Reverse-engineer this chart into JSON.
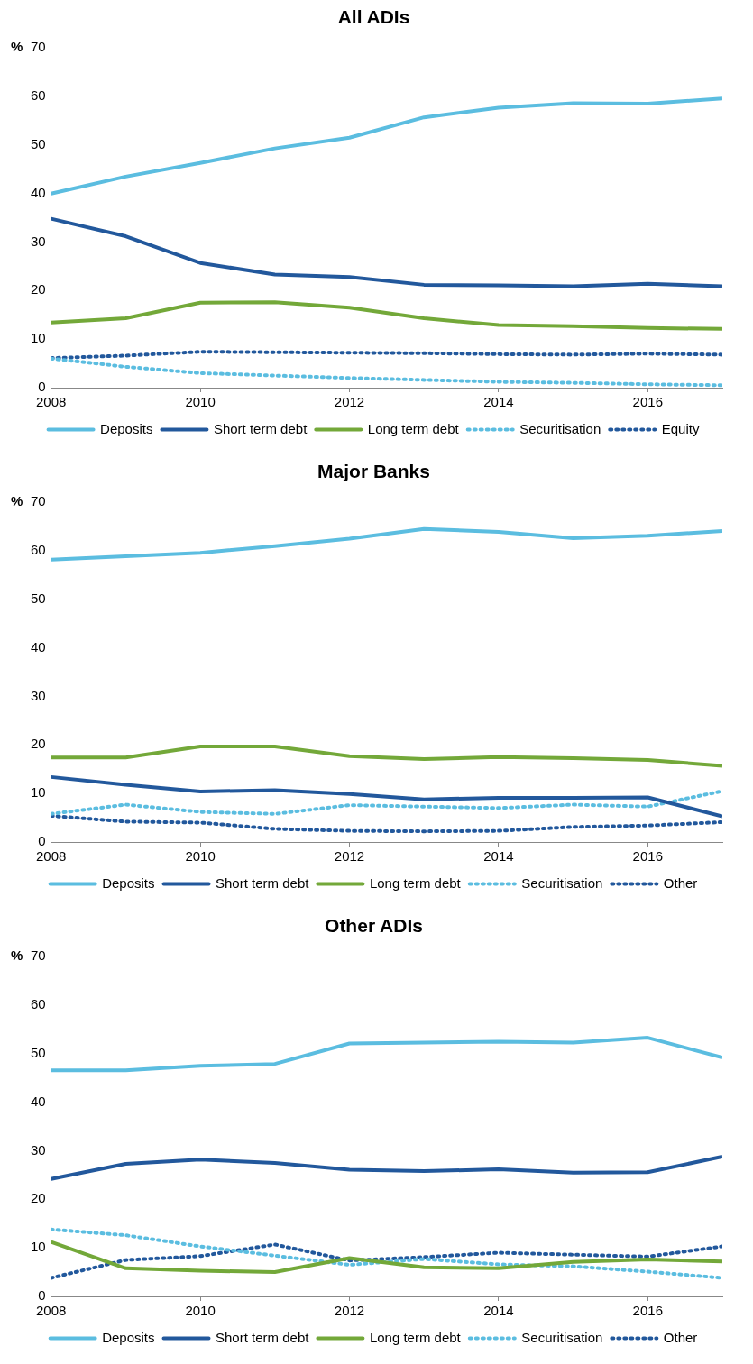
{
  "chart_data": [
    {
      "type": "line",
      "title": "All ADIs",
      "ylabel": "%",
      "x": [
        2008,
        2009,
        2010,
        2011,
        2012,
        2013,
        2014,
        2015,
        2016,
        2017
      ],
      "xlim": [
        2008,
        2017
      ],
      "xticks": [
        2008,
        2010,
        2012,
        2014,
        2016
      ],
      "ylim": [
        0,
        70
      ],
      "yticks": [
        0,
        10,
        20,
        30,
        40,
        50,
        60,
        70
      ],
      "grid": false,
      "legend": "bottom",
      "marker": "none",
      "series": [
        {
          "name": "Deposits",
          "color": "#5bbde0",
          "line_style": "solid",
          "values": [
            40.0,
            43.5,
            46.3,
            49.3,
            51.5,
            55.7,
            57.7,
            58.6,
            58.5,
            59.6
          ]
        },
        {
          "name": "Short term debt",
          "color": "#22589c",
          "line_style": "solid",
          "values": [
            34.8,
            31.2,
            25.7,
            23.3,
            22.8,
            21.2,
            21.1,
            20.9,
            21.4,
            20.9
          ]
        },
        {
          "name": "Long term debt",
          "color": "#73a839",
          "line_style": "solid",
          "values": [
            13.4,
            14.3,
            17.5,
            17.6,
            16.5,
            14.3,
            12.9,
            12.7,
            12.3,
            12.1
          ]
        },
        {
          "name": "Securitisation",
          "color": "#5bbde0",
          "line_style": "dotted",
          "values": [
            6.0,
            4.3,
            3.0,
            2.5,
            2.0,
            1.6,
            1.2,
            1.0,
            0.7,
            0.5
          ]
        },
        {
          "name": "Equity",
          "color": "#22589c",
          "line_style": "dotted",
          "values": [
            6.1,
            6.6,
            7.4,
            7.3,
            7.2,
            7.1,
            6.9,
            6.8,
            7.0,
            6.8
          ]
        }
      ]
    },
    {
      "type": "line",
      "title": "Major Banks",
      "ylabel": "%",
      "x": [
        2008,
        2009,
        2010,
        2011,
        2012,
        2013,
        2014,
        2015,
        2016,
        2017
      ],
      "xlim": [
        2008,
        2017
      ],
      "xticks": [
        2008,
        2010,
        2012,
        2014,
        2016
      ],
      "ylim": [
        0,
        70
      ],
      "yticks": [
        0,
        10,
        20,
        30,
        40,
        50,
        60,
        70
      ],
      "grid": false,
      "legend": "bottom",
      "marker": "none",
      "series": [
        {
          "name": "Deposits",
          "color": "#5bbde0",
          "line_style": "solid",
          "values": [
            58.2,
            58.9,
            59.6,
            61.0,
            62.5,
            64.5,
            63.9,
            62.6,
            63.1,
            64.1
          ]
        },
        {
          "name": "Short term debt",
          "color": "#22589c",
          "line_style": "solid",
          "values": [
            13.4,
            11.8,
            10.4,
            10.7,
            9.9,
            8.8,
            9.1,
            9.1,
            9.2,
            5.3
          ]
        },
        {
          "name": "Long term debt",
          "color": "#73a839",
          "line_style": "solid",
          "values": [
            17.4,
            17.4,
            19.7,
            19.7,
            17.7,
            17.1,
            17.5,
            17.3,
            16.9,
            15.7
          ]
        },
        {
          "name": "Securitisation",
          "color": "#5bbde0",
          "line_style": "dotted",
          "values": [
            5.8,
            7.7,
            6.2,
            5.8,
            7.6,
            7.3,
            7.0,
            7.7,
            7.3,
            10.5
          ]
        },
        {
          "name": "Other",
          "color": "#22589c",
          "line_style": "dotted",
          "values": [
            5.4,
            4.2,
            4.0,
            2.7,
            2.3,
            2.2,
            2.3,
            3.1,
            3.4,
            4.1
          ]
        }
      ]
    },
    {
      "type": "line",
      "title": "Other ADIs",
      "ylabel": "%",
      "x": [
        2008,
        2009,
        2010,
        2011,
        2012,
        2013,
        2014,
        2015,
        2016,
        2017
      ],
      "xlim": [
        2008,
        2017
      ],
      "xticks": [
        2008,
        2010,
        2012,
        2014,
        2016
      ],
      "ylim": [
        0,
        70
      ],
      "yticks": [
        0,
        10,
        20,
        30,
        40,
        50,
        60,
        70
      ],
      "grid": false,
      "legend": "bottom",
      "marker": "none",
      "series": [
        {
          "name": "Deposits",
          "color": "#5bbde0",
          "line_style": "solid",
          "values": [
            46.6,
            46.6,
            47.5,
            47.9,
            52.1,
            52.3,
            52.5,
            52.3,
            53.3,
            49.2
          ]
        },
        {
          "name": "Short term debt",
          "color": "#22589c",
          "line_style": "solid",
          "values": [
            24.2,
            27.3,
            28.2,
            27.5,
            26.1,
            25.8,
            26.2,
            25.5,
            25.6,
            28.8
          ]
        },
        {
          "name": "Long term debt",
          "color": "#73a839",
          "line_style": "solid",
          "values": [
            11.2,
            5.8,
            5.3,
            5.0,
            7.9,
            6.0,
            5.8,
            7.1,
            7.6,
            7.2
          ]
        },
        {
          "name": "Securitisation",
          "color": "#5bbde0",
          "line_style": "dotted",
          "values": [
            13.8,
            12.6,
            10.3,
            8.4,
            6.5,
            7.7,
            6.6,
            6.2,
            5.1,
            3.8
          ]
        },
        {
          "name": "Other",
          "color": "#22589c",
          "line_style": "dotted",
          "values": [
            3.8,
            7.5,
            8.3,
            10.7,
            7.4,
            8.1,
            9.0,
            8.6,
            8.2,
            10.3
          ]
        }
      ]
    }
  ]
}
